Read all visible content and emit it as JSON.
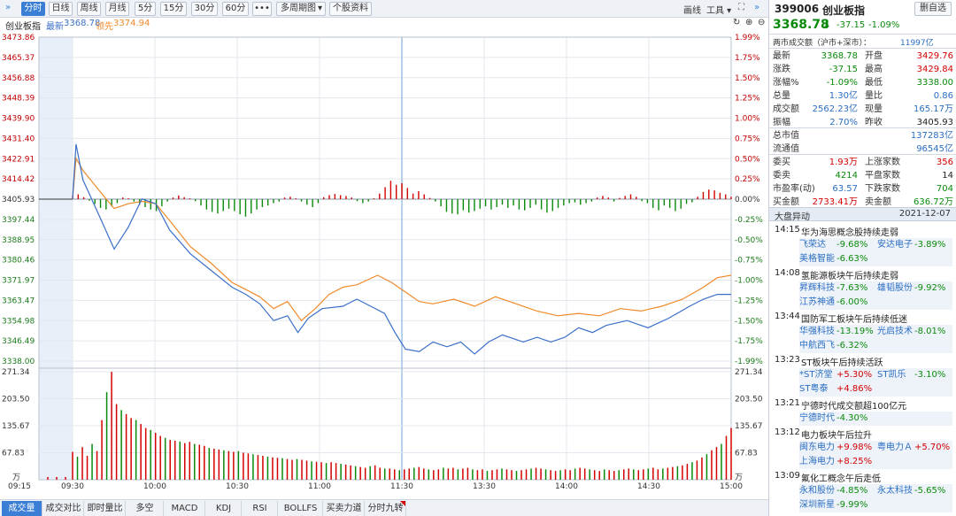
{
  "toolbar": {
    "period_buttons": [
      "分时",
      "日线",
      "周线",
      "月线",
      "5分",
      "15分",
      "30分",
      "60分"
    ],
    "more": "•••",
    "multi_period": "多周期图",
    "stock_info": "个股资料",
    "draw": "画线",
    "tools": "工具"
  },
  "legend": {
    "name": "创业板指",
    "latest_label": "最新",
    "latest_value": "3368.78",
    "lead_label": "领先",
    "lead_value": "3374.94"
  },
  "colors": {
    "up": "#d40000",
    "down": "#0a8a0a",
    "price_line": "#3a6fc9",
    "lead_line": "#f08a2a",
    "accent": "#3a7fd5"
  },
  "chart_data": [
    {
      "type": "line",
      "title": "创业板指 分时",
      "prev_close": 3405.93,
      "ylim": [
        3338.0,
        3473.86
      ],
      "y_ticks_left": [
        "3473.86",
        "3465.37",
        "3456.88",
        "3448.39",
        "3439.90",
        "3431.40",
        "3422.91",
        "3414.42",
        "3405.93",
        "3397.44",
        "3388.95",
        "3380.46",
        "3371.97",
        "3363.47",
        "3354.98",
        "3346.49",
        "3338.00"
      ],
      "y_ticks_right": [
        "1.99%",
        "1.75%",
        "1.50%",
        "1.25%",
        "1.00%",
        "0.75%",
        "0.50%",
        "0.25%",
        "0.00%",
        "-0.25%",
        "-0.50%",
        "-0.75%",
        "-1.00%",
        "-1.25%",
        "-1.50%",
        "-1.75%",
        "-1.99%"
      ],
      "x_ticks": [
        "09:15",
        "09:30",
        "10:00",
        "10:30",
        "11:00",
        "11:30",
        "13:30",
        "14:00",
        "14:30",
        "15:00"
      ],
      "series": [
        {
          "name": "最新",
          "points": [
            [
              0,
              3406
            ],
            [
              1,
              3429
            ],
            [
              3,
              3414
            ],
            [
              8,
              3398
            ],
            [
              12,
              3385
            ],
            [
              16,
              3394
            ],
            [
              20,
              3406
            ],
            [
              24,
              3404
            ],
            [
              28,
              3393
            ],
            [
              34,
              3383
            ],
            [
              40,
              3376
            ],
            [
              46,
              3369
            ],
            [
              50,
              3366
            ],
            [
              54,
              3362
            ],
            [
              58,
              3355
            ],
            [
              62,
              3357
            ],
            [
              65,
              3350
            ],
            [
              68,
              3356
            ],
            [
              72,
              3360
            ],
            [
              78,
              3361
            ],
            [
              82,
              3364
            ],
            [
              86,
              3361
            ],
            [
              90,
              3358
            ],
            [
              93,
              3350
            ],
            [
              96,
              3343
            ],
            [
              100,
              3342
            ],
            [
              104,
              3346
            ],
            [
              108,
              3344
            ],
            [
              112,
              3346
            ],
            [
              116,
              3341
            ],
            [
              120,
              3346
            ],
            [
              124,
              3349
            ],
            [
              130,
              3346
            ],
            [
              134,
              3348
            ],
            [
              138,
              3346
            ],
            [
              142,
              3348
            ],
            [
              146,
              3352
            ],
            [
              150,
              3350
            ],
            [
              154,
              3353
            ],
            [
              160,
              3355
            ],
            [
              166,
              3352
            ],
            [
              172,
              3356
            ],
            [
              178,
              3361
            ],
            [
              182,
              3364
            ],
            [
              186,
              3366
            ],
            [
              190,
              3366
            ]
          ]
        },
        {
          "name": "领先",
          "points": [
            [
              0,
              3406
            ],
            [
              1,
              3423
            ],
            [
              3,
              3418
            ],
            [
              8,
              3409
            ],
            [
              12,
              3402
            ],
            [
              16,
              3404
            ],
            [
              20,
              3405
            ],
            [
              24,
              3404
            ],
            [
              28,
              3397
            ],
            [
              34,
              3386
            ],
            [
              40,
              3379
            ],
            [
              46,
              3371
            ],
            [
              50,
              3368
            ],
            [
              54,
              3365
            ],
            [
              58,
              3360
            ],
            [
              62,
              3363
            ],
            [
              66,
              3355
            ],
            [
              70,
              3360
            ],
            [
              74,
              3366
            ],
            [
              78,
              3369
            ],
            [
              82,
              3370
            ],
            [
              88,
              3374
            ],
            [
              92,
              3371
            ],
            [
              96,
              3367
            ],
            [
              100,
              3363
            ],
            [
              104,
              3362
            ],
            [
              110,
              3364
            ],
            [
              116,
              3361
            ],
            [
              122,
              3365
            ],
            [
              128,
              3362
            ],
            [
              134,
              3359
            ],
            [
              140,
              3357
            ],
            [
              146,
              3358
            ],
            [
              152,
              3357
            ],
            [
              158,
              3360
            ],
            [
              164,
              3359
            ],
            [
              170,
              3361
            ],
            [
              176,
              3364
            ],
            [
              182,
              3369
            ],
            [
              186,
              3373
            ],
            [
              190,
              3374
            ]
          ]
        }
      ],
      "diff_bars": [
        0.8,
        1.2,
        0.5,
        -0.4,
        -1.2,
        -2.2,
        -2.6,
        -1.8,
        -1.0,
        0.4,
        0.2,
        -0.6,
        -1.4,
        -2.0,
        -2.6,
        -3.0,
        -1.8,
        -0.6,
        0.4,
        0.9,
        0.5,
        0.2,
        -0.5,
        -1.6,
        -2.6,
        -3.2,
        -3.6,
        -3.0,
        -2.4,
        -3.0,
        -3.8,
        -4.4,
        -3.6,
        -2.6,
        -2.0,
        -1.6,
        -1.0,
        -0.6,
        0.4,
        0.6,
        0.2,
        -0.6,
        -1.4,
        -2.0,
        -1.0,
        0.5,
        1.0,
        1.3,
        1.0,
        0.8,
        0.4,
        -0.5,
        -1.0,
        -0.6,
        0.2,
        1.4,
        3.0,
        4.6,
        3.6,
        4.0,
        2.8,
        1.4,
        2.0,
        1.2,
        0.3,
        -0.6,
        -1.8,
        -3.2,
        -3.6,
        -3.8,
        -2.8,
        -3.4,
        -3.0,
        -2.4,
        -1.8,
        -2.6,
        -2.0,
        -1.4,
        -2.2,
        -1.6,
        -2.6,
        -2.8,
        -2.2,
        -1.4,
        -2.6,
        -3.4,
        -3.0,
        -2.2,
        -1.6,
        -1.0,
        -0.8,
        -1.4,
        -1.0,
        -0.6,
        0.4,
        0.8,
        0.4,
        -0.6,
        0.3,
        0.8,
        1.2,
        0.6,
        -0.5,
        -1.0,
        -2.2,
        -2.8,
        -1.6,
        -2.2,
        -3.0,
        -2.4,
        -1.2,
        -0.8,
        0.6,
        1.8,
        2.4,
        2.2,
        1.6,
        1.2,
        0.6
      ]
    },
    {
      "type": "bar",
      "title": "成交量",
      "ylim": [
        0,
        271.34
      ],
      "y_ticks": [
        "271.34",
        "203.50",
        "135.67",
        "67.83"
      ],
      "unit": "万",
      "values": [
        70,
        58,
        82,
        60,
        90,
        72,
        150,
        220,
        271,
        190,
        175,
        165,
        155,
        150,
        140,
        130,
        125,
        118,
        110,
        105,
        100,
        98,
        96,
        92,
        95,
        90,
        88,
        85,
        80,
        78,
        76,
        74,
        72,
        70,
        72,
        68,
        66,
        64,
        62,
        60,
        58,
        56,
        55,
        54,
        52,
        50,
        52,
        50,
        48,
        46,
        45,
        44,
        42,
        44,
        42,
        40,
        38,
        36,
        34,
        32,
        30,
        34,
        36,
        30,
        28,
        28,
        26,
        24,
        26,
        28,
        30,
        32,
        28,
        26,
        24,
        26,
        30,
        28,
        30,
        26,
        28,
        30,
        26,
        24,
        26,
        22,
        24,
        26,
        28,
        26,
        24,
        22,
        24,
        26,
        28,
        30,
        28,
        26,
        24,
        22,
        24,
        26,
        24,
        28,
        30,
        28,
        26,
        24,
        22,
        26,
        24,
        22,
        24,
        26,
        28,
        26,
        24,
        26,
        28,
        30,
        26,
        28,
        30,
        32,
        34,
        36,
        40,
        44,
        48,
        56,
        64,
        74,
        82,
        90,
        110,
        130
      ]
    }
  ],
  "tabs": [
    "成交量",
    "成交对比",
    "即时量比",
    "多空",
    "MACD",
    "KDJ",
    "RSI",
    "BOLLFS",
    "买卖力道",
    "分时九转"
  ],
  "quote": {
    "code": "399006",
    "name": "创业板指",
    "delete_label": "删自选",
    "price": "3368.78",
    "arrow": "⬇",
    "change": "-37.15",
    "change_pct": "-1.09%",
    "market_turnover_label": "两市成交额（沪市+深市）：",
    "market_turnover": "11997亿",
    "rows": [
      {
        "l1": "最新",
        "v1": "3368.78",
        "c1": "green",
        "l2": "开盘",
        "v2": "3429.76",
        "c2": "red"
      },
      {
        "l1": "涨跌",
        "v1": "-37.15",
        "c1": "green",
        "l2": "最高",
        "v2": "3429.84",
        "c2": "red"
      },
      {
        "l1": "涨幅%",
        "v1": "-1.09%",
        "c1": "green",
        "l2": "最低",
        "v2": "3338.00",
        "c2": "green"
      },
      {
        "l1": "总量",
        "v1": "1.30亿",
        "c1": "blue",
        "l2": "量比",
        "v2": "0.86",
        "c2": "blue"
      },
      {
        "l1": "成交额",
        "v1": "2562.23亿",
        "c1": "blue",
        "l2": "现量",
        "v2": "165.17万",
        "c2": "blue"
      },
      {
        "l1": "振幅",
        "v1": "2.70%",
        "c1": "blue",
        "l2": "昨收",
        "v2": "3405.93",
        "c2": "dark"
      }
    ],
    "cap_rows": [
      {
        "l": "总市值",
        "v": "137283亿"
      },
      {
        "l": "流通值",
        "v": "96545亿"
      }
    ],
    "rows2": [
      {
        "l1": "委买",
        "v1": "1.93万",
        "c1": "red",
        "l2": "上涨家数",
        "v2": "356",
        "c2": "red"
      },
      {
        "l1": "委卖",
        "v1": "4214",
        "c1": "green",
        "l2": "平盘家数",
        "v2": "14",
        "c2": "dark"
      },
      {
        "l1": "市盈率(动)",
        "v1": "63.57",
        "c1": "blue",
        "l2": "下跌家数",
        "v2": "704",
        "c2": "green"
      },
      {
        "l1": "买金额",
        "v1": "2733.41万",
        "c1": "red",
        "l2": "卖金额",
        "v2": "636.72万",
        "c2": "green"
      }
    ]
  },
  "news": {
    "title": "大盘异动",
    "date": "2021-12-07",
    "items": [
      {
        "time": "14:15",
        "headline": "华为海思概念股持续走弱",
        "stocks": [
          [
            {
              "n": "飞荣达",
              "p": "-9.68%",
              "c": "green"
            },
            {
              "n": "安达电子",
              "p": "-3.89%",
              "c": "green"
            }
          ],
          [
            {
              "n": "美格智能",
              "p": "-6.63%",
              "c": "green"
            }
          ]
        ]
      },
      {
        "time": "14:08",
        "headline": "氢能源板块午后持续走弱",
        "stocks": [
          [
            {
              "n": "昇辉科技",
              "p": "-7.63%",
              "c": "green"
            },
            {
              "n": "雄韬股份",
              "p": "-9.92%",
              "c": "green"
            }
          ],
          [
            {
              "n": "江苏神通",
              "p": "-6.00%",
              "c": "green"
            }
          ]
        ]
      },
      {
        "time": "13:44",
        "headline": "国防军工板块午后持续低迷",
        "stocks": [
          [
            {
              "n": "华强科技",
              "p": "-13.19%",
              "c": "green"
            },
            {
              "n": "光启技术",
              "p": "-8.01%",
              "c": "green"
            }
          ],
          [
            {
              "n": "中航西飞",
              "p": "-6.32%",
              "c": "green"
            }
          ]
        ]
      },
      {
        "time": "13:23",
        "headline": "ST板块午后持续活跃",
        "stocks": [
          [
            {
              "n": "*ST济堂",
              "p": "+5.30%",
              "c": "red"
            },
            {
              "n": "ST凯乐",
              "p": "-3.10%",
              "c": "green"
            }
          ],
          [
            {
              "n": "ST粤泰",
              "p": "+4.86%",
              "c": "red"
            }
          ]
        ]
      },
      {
        "time": "13:21",
        "headline": "宁德时代成交额超100亿元",
        "stocks": [
          [
            {
              "n": "宁德时代",
              "p": "-4.30%",
              "c": "green"
            }
          ]
        ]
      },
      {
        "time": "13:12",
        "headline": "电力板块午后拉升",
        "stocks": [
          [
            {
              "n": "闽东电力",
              "p": "+9.98%",
              "c": "red"
            },
            {
              "n": "粤电力Ａ",
              "p": "+5.70%",
              "c": "red"
            }
          ],
          [
            {
              "n": "上海电力",
              "p": "+8.25%",
              "c": "red"
            }
          ]
        ]
      },
      {
        "time": "13:09",
        "headline": "氟化工概念午后走低",
        "stocks": [
          [
            {
              "n": "永和股份",
              "p": "-4.85%",
              "c": "green"
            },
            {
              "n": "永太科技",
              "p": "-5.65%",
              "c": "green"
            }
          ],
          [
            {
              "n": "深圳新星",
              "p": "-9.99%",
              "c": "green"
            }
          ]
        ]
      }
    ]
  }
}
